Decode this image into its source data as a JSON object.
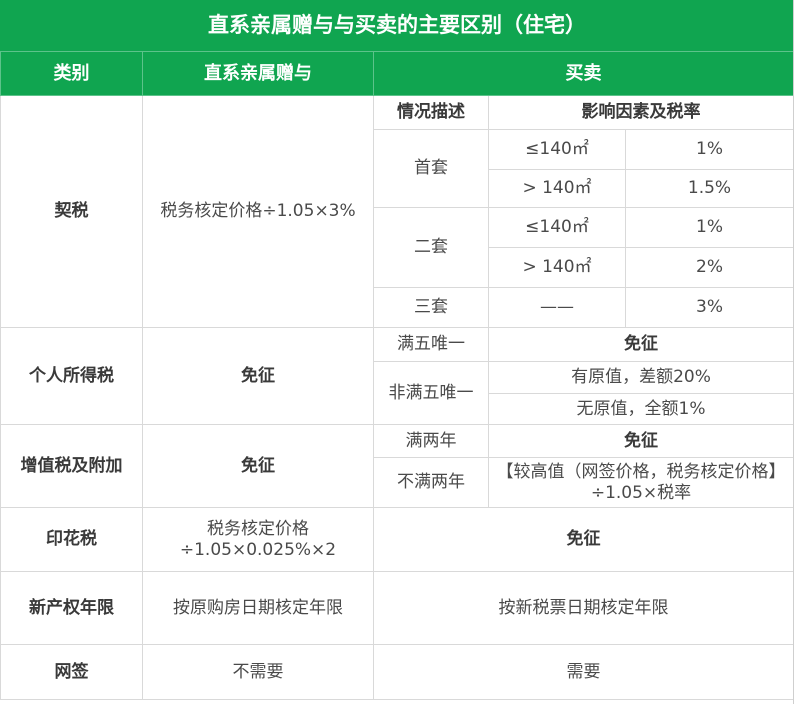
{
  "title": "直系亲属赠与与买卖的主要区别（住宅）",
  "headers": {
    "category": "类别",
    "gift": "直系亲属赠与",
    "sale": "买卖"
  },
  "deed_tax": {
    "category": "契税",
    "gift": "税务核定价格÷1.05×3%",
    "col_situation": "情况描述",
    "col_factors": "影响因素及税率",
    "first": {
      "label": "首套",
      "rows": [
        {
          "area": "≤140㎡",
          "rate": "1%"
        },
        {
          "area": "> 140㎡",
          "rate": "1.5%"
        }
      ]
    },
    "second": {
      "label": "二套",
      "rows": [
        {
          "area": "≤140㎡",
          "rate": "1%"
        },
        {
          "area": "> 140㎡",
          "rate": "2%"
        }
      ]
    },
    "third": {
      "label": "三套",
      "area": "——",
      "rate": "3%"
    }
  },
  "income_tax": {
    "category": "个人所得税",
    "gift": "免征",
    "five_only": "满五唯一",
    "five_only_value": "免征",
    "not_five_only": "非满五唯一",
    "with_original": "有原值，差额20%",
    "without_original": "无原值，全额1%"
  },
  "vat": {
    "category": "增值税及附加",
    "gift": "免征",
    "over_two": "满两年",
    "over_two_value": "免征",
    "under_two": "不满两年",
    "under_two_value": "【较高值（网签价格，税务核定价格】÷1.05×税率"
  },
  "stamp_tax": {
    "category": "印花税",
    "gift_line1": "税务核定价格",
    "gift_line2": "÷1.05×0.025%×2",
    "sale": "免征"
  },
  "property_years": {
    "category": "新产权年限",
    "gift": "按原购房日期核定年限",
    "sale": "按新税票日期核定年限"
  },
  "online_sign": {
    "category": "网签",
    "gift": "不需要",
    "sale": "需要"
  },
  "colors": {
    "header_green": "#10a550",
    "border": "#d9d9d9",
    "text": "#4a4a4a"
  }
}
